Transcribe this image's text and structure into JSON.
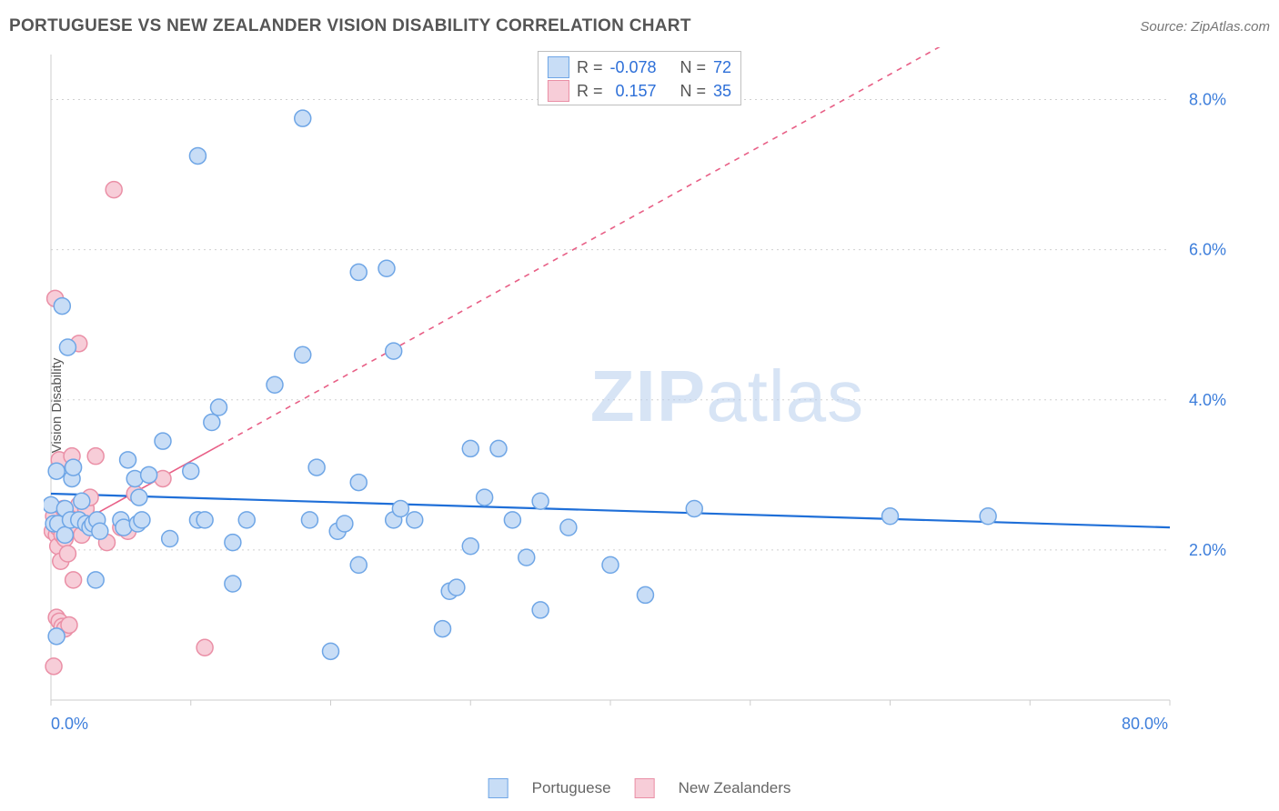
{
  "title": "PORTUGUESE VS NEW ZEALANDER VISION DISABILITY CORRELATION CHART",
  "source_label": "Source:",
  "source_name": "ZipAtlas.com",
  "ylabel": "Vision Disability",
  "watermark": {
    "bold": "ZIP",
    "rest": "atlas"
  },
  "chart": {
    "type": "scatter+regression",
    "background_color": "#ffffff",
    "grid_color": "#d0d0d0",
    "axis_color": "#cccccc",
    "x": {
      "min": 0,
      "max": 80,
      "ticks_at": [
        0,
        10,
        20,
        30,
        40,
        50,
        60,
        70,
        80
      ],
      "labeled_ticks": [
        0,
        80
      ],
      "label_suffix": "%",
      "label_color": "#3d7edb",
      "label_fontsize": 18
    },
    "y": {
      "min": 0,
      "max": 8.6,
      "gridlines": [
        2.0,
        4.0,
        6.0,
        8.0
      ],
      "labeled_ticks": [
        2.0,
        4.0,
        6.0,
        8.0
      ],
      "label_suffix": "%",
      "label_color": "#3d7edb",
      "label_fontsize": 18
    },
    "marker_radius": 9,
    "marker_stroke_width": 1.5,
    "series": [
      {
        "name": "Portuguese",
        "fill": "#c8ddf6",
        "stroke": "#6fa6e6",
        "r_value": "-0.078",
        "n_value": "72",
        "regression": {
          "y_at_x0": 2.75,
          "y_at_x80": 2.3,
          "color": "#1f6fd8",
          "dash": null,
          "width": 2.2
        },
        "points": [
          [
            0.0,
            2.6
          ],
          [
            0.2,
            2.35
          ],
          [
            0.4,
            3.05
          ],
          [
            0.4,
            0.85
          ],
          [
            0.5,
            2.35
          ],
          [
            0.8,
            5.25
          ],
          [
            1.0,
            2.2
          ],
          [
            1.0,
            2.55
          ],
          [
            1.2,
            4.7
          ],
          [
            1.4,
            2.4
          ],
          [
            1.5,
            2.95
          ],
          [
            1.6,
            3.1
          ],
          [
            2.0,
            2.4
          ],
          [
            2.2,
            2.65
          ],
          [
            2.5,
            2.35
          ],
          [
            2.8,
            2.3
          ],
          [
            3.0,
            2.35
          ],
          [
            3.2,
            1.6
          ],
          [
            3.3,
            2.4
          ],
          [
            3.5,
            2.25
          ],
          [
            5.0,
            2.4
          ],
          [
            5.2,
            2.3
          ],
          [
            5.5,
            3.2
          ],
          [
            6.0,
            2.95
          ],
          [
            6.2,
            2.35
          ],
          [
            6.3,
            2.7
          ],
          [
            6.5,
            2.4
          ],
          [
            7.0,
            3.0
          ],
          [
            8.0,
            3.45
          ],
          [
            8.5,
            2.15
          ],
          [
            10.0,
            3.05
          ],
          [
            10.5,
            2.4
          ],
          [
            10.5,
            7.25
          ],
          [
            11.0,
            2.4
          ],
          [
            11.5,
            3.7
          ],
          [
            12.0,
            3.9
          ],
          [
            13.0,
            2.1
          ],
          [
            13.0,
            1.55
          ],
          [
            14.0,
            2.4
          ],
          [
            16.0,
            4.2
          ],
          [
            18.0,
            4.6
          ],
          [
            18.0,
            7.75
          ],
          [
            18.5,
            2.4
          ],
          [
            19.0,
            3.1
          ],
          [
            20.0,
            0.65
          ],
          [
            20.5,
            2.25
          ],
          [
            21.0,
            2.35
          ],
          [
            22.0,
            1.8
          ],
          [
            22.0,
            2.9
          ],
          [
            22.0,
            5.7
          ],
          [
            24.0,
            5.75
          ],
          [
            24.5,
            4.65
          ],
          [
            24.5,
            2.4
          ],
          [
            25.0,
            2.55
          ],
          [
            26.0,
            2.4
          ],
          [
            28.0,
            0.95
          ],
          [
            28.5,
            1.45
          ],
          [
            29.0,
            1.5
          ],
          [
            30.0,
            3.35
          ],
          [
            30.0,
            2.05
          ],
          [
            31.0,
            2.7
          ],
          [
            32.0,
            3.35
          ],
          [
            33.0,
            2.4
          ],
          [
            34.0,
            1.9
          ],
          [
            35.0,
            2.65
          ],
          [
            35.0,
            1.2
          ],
          [
            37.0,
            2.3
          ],
          [
            40.0,
            1.8
          ],
          [
            42.5,
            1.4
          ],
          [
            46.0,
            2.55
          ],
          [
            60.0,
            2.45
          ],
          [
            67.0,
            2.45
          ]
        ]
      },
      {
        "name": "New Zealanders",
        "fill": "#f7cdd8",
        "stroke": "#ea8fa6",
        "r_value": "0.157",
        "n_value": "35",
        "regression": {
          "y_at_x0": 2.15,
          "y_at_x80": 10.4,
          "color": "#e85f86",
          "solid_until_x": 12,
          "dash": "6 6",
          "width": 1.6
        },
        "points": [
          [
            0.1,
            2.25
          ],
          [
            0.2,
            2.45
          ],
          [
            0.2,
            0.45
          ],
          [
            0.3,
            5.35
          ],
          [
            0.4,
            1.1
          ],
          [
            0.4,
            2.2
          ],
          [
            0.5,
            2.3
          ],
          [
            0.5,
            2.05
          ],
          [
            0.6,
            3.2
          ],
          [
            0.6,
            1.05
          ],
          [
            0.7,
            2.35
          ],
          [
            0.7,
            1.85
          ],
          [
            0.8,
            2.2
          ],
          [
            0.8,
            0.98
          ],
          [
            0.9,
            2.55
          ],
          [
            1.0,
            2.15
          ],
          [
            1.0,
            0.95
          ],
          [
            1.2,
            1.95
          ],
          [
            1.3,
            1.0
          ],
          [
            1.5,
            3.25
          ],
          [
            1.6,
            1.6
          ],
          [
            1.8,
            2.3
          ],
          [
            2.0,
            2.6
          ],
          [
            2.0,
            4.75
          ],
          [
            2.2,
            2.2
          ],
          [
            2.5,
            2.55
          ],
          [
            2.8,
            2.7
          ],
          [
            3.2,
            3.25
          ],
          [
            4.0,
            2.1
          ],
          [
            4.5,
            6.8
          ],
          [
            5.0,
            2.3
          ],
          [
            5.5,
            2.25
          ],
          [
            6.0,
            2.75
          ],
          [
            8.0,
            2.95
          ],
          [
            11.0,
            0.7
          ]
        ]
      }
    ],
    "stats_legend_labels": {
      "r": "R =",
      "n": "N ="
    },
    "bottom_legend_labels": [
      "Portuguese",
      "New Zealanders"
    ]
  }
}
